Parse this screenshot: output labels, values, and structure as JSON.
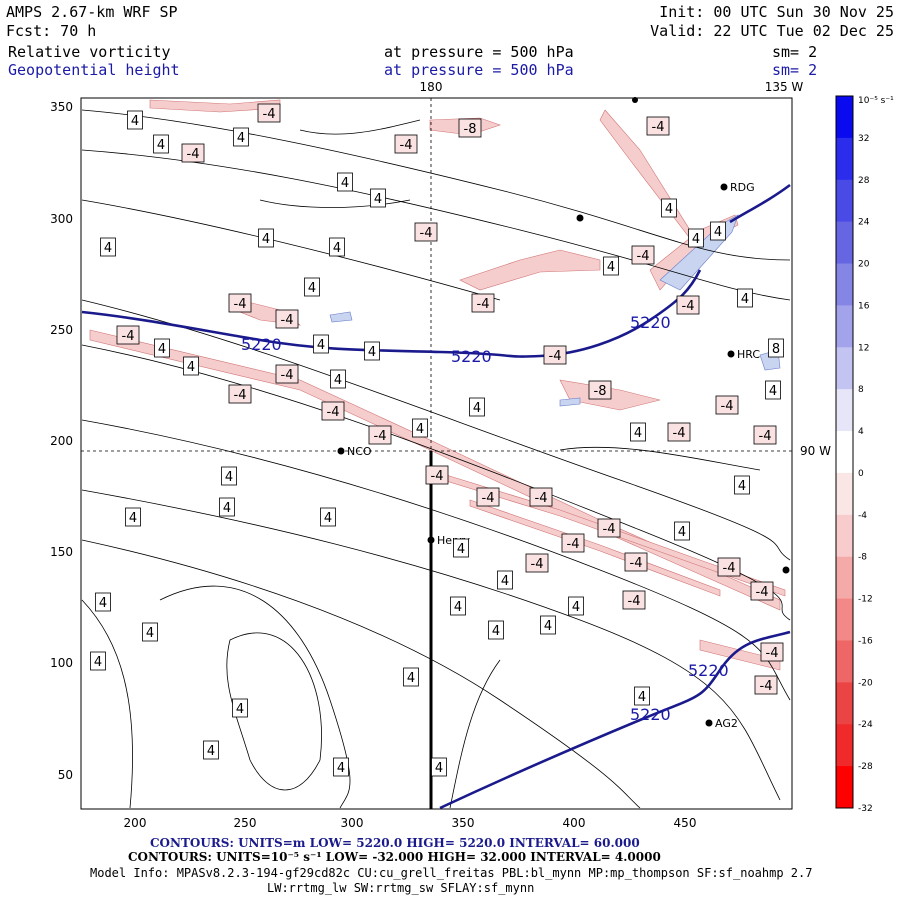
{
  "header": {
    "model": "AMPS 2.67-km WRF SP",
    "fcst": "Fcst:    70 h",
    "init": "Init: 00 UTC Sun 30 Nov 25",
    "valid": "Valid: 22 UTC Tue 02 Dec 25",
    "field1": "Relative vorticity",
    "field2": "Geopotential height",
    "pressure1": "at pressure =  500 hPa",
    "pressure2": "at pressure =  500 hPa",
    "sm1": "sm= 2",
    "sm2": "sm= 2"
  },
  "map": {
    "top_labels": [
      "180",
      "135 W"
    ],
    "right_label": "90 W",
    "x_ticks": [
      "200",
      "250",
      "300",
      "350",
      "400",
      "450"
    ],
    "y_ticks": [
      "350",
      "300",
      "250",
      "200",
      "150",
      "100",
      "50"
    ],
    "stations": [
      "RDG",
      "HRC",
      "NCO",
      "Henry",
      "AG2"
    ],
    "height_labels": [
      "5220",
      "5220",
      "5220",
      "5220",
      "5220"
    ],
    "vort_labels_pos": "4",
    "vort_labels_neg": "-4",
    "vort_labels_neg8": "-8",
    "vort_labels_pos8": "8"
  },
  "colorbar": {
    "unit": "10⁻⁵ s⁻¹",
    "ticks": [
      "32",
      "28",
      "24",
      "20",
      "16",
      "12",
      "8",
      "4",
      "0",
      "-4",
      "-8",
      "-12",
      "-16",
      "-20",
      "-24",
      "-28",
      "-32"
    ],
    "colors": [
      "#0a0af0",
      "#2c2ced",
      "#4a4ae6",
      "#6666e3",
      "#8585e6",
      "#a3a3ec",
      "#c4c4f2",
      "#e6e6f8",
      "#ffffff",
      "#fbe6e6",
      "#f8cccc",
      "#f5aaaa",
      "#f28888",
      "#ee6666",
      "#ea4444",
      "#f02a2a",
      "#ff0000"
    ]
  },
  "footer": {
    "line1": "CONTOURS:  UNITS=m  LOW=  5220.0        HIGH=  5220.0        INTERVAL=  60.000",
    "line2": "CONTOURS:  UNITS=10⁻⁵ s⁻¹  LOW=  -32.000        HIGH=  32.000        INTERVAL=   4.0000",
    "line3": "Model Info: MPASv8.2.3-194-gf29cd82c CU:cu_grell_freitas PBL:bl_mynn MP:mp_thompson SF:sf_noahmp 2.7",
    "line4": "LW:rrtmg_lw SW:rrtmg_sw SFLAY:sf_mynn"
  }
}
